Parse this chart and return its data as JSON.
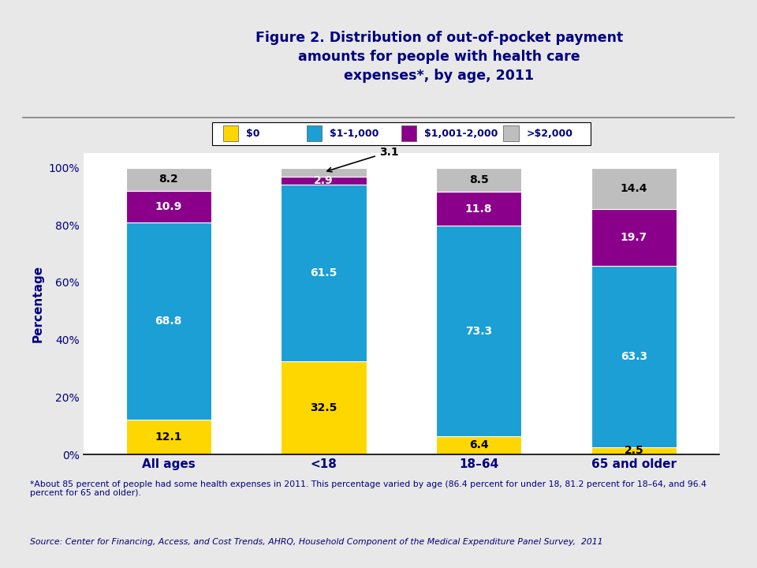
{
  "title": "Figure 2. Distribution of out-of-pocket payment\namounts for people with health care\nexpenses*, by age, 2011",
  "title_color": "#000080",
  "ylabel": "Percentage",
  "categories": [
    "All ages",
    "<18",
    "18–64",
    "65 and older"
  ],
  "segments": {
    "$0": [
      12.1,
      32.5,
      6.4,
      2.5
    ],
    "$1-1,000": [
      68.8,
      61.5,
      73.3,
      63.3
    ],
    "$1,001-2,000": [
      10.9,
      2.9,
      11.8,
      19.7
    ],
    ">$2,000": [
      8.2,
      3.1,
      8.5,
      14.4
    ]
  },
  "colors": {
    "$0": "#FFD700",
    "$1-1,000": "#1B9FD4",
    "$1,001-2,000": "#8B008B",
    ">$2,000": "#BEBEBE"
  },
  "legend_labels": [
    "$0",
    "$1-1,000",
    "$1,001-2,000",
    ">$2,000"
  ],
  "bar_width": 0.55,
  "ylim": [
    0,
    105
  ],
  "yticks": [
    0,
    20,
    40,
    60,
    80,
    100
  ],
  "ytick_labels": [
    "0%",
    "20%",
    "40%",
    "60%",
    "80%",
    "100%"
  ],
  "footnote1": "*About 85 percent of people had some health expenses in 2011. This percentage varied by age (86.4 percent for under 18, 81.2 percent for 18–64, and 96.4\npercent for 65 and older).",
  "footnote2": "Source: Center for Financing, Access, and Cost Trends, AHRQ, Household Component of the Medical Expenditure Panel Survey,  2011",
  "background_color": "#E8E8E8",
  "header_bg_color": "#C8C8C8",
  "plot_bg_color": "#FFFFFF",
  "text_color": "#000080",
  "separator_color": "#808080"
}
